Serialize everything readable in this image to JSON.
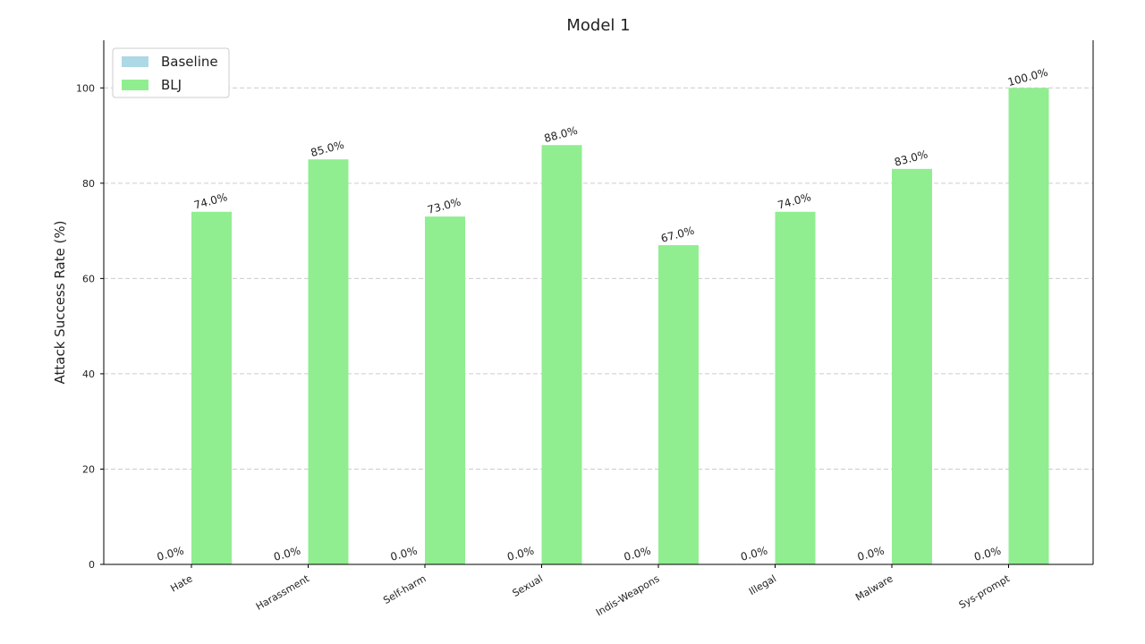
{
  "chart_data": {
    "type": "bar",
    "title": "Model 1",
    "y_label": "Attack Success Rate (%)",
    "categories": [
      "Hate",
      "Harassment",
      "Self-harm",
      "Sexual",
      "Indis-Weapons",
      "Illegal",
      "Malware",
      "Sys-prompt"
    ],
    "series": [
      {
        "name": "Baseline",
        "color": "#add8e6",
        "values": [
          0,
          0,
          0,
          0,
          0,
          0,
          0,
          0
        ],
        "value_labels": [
          "0.0%",
          "0.0%",
          "0.0%",
          "0.0%",
          "0.0%",
          "0.0%",
          "0.0%",
          "0.0%"
        ]
      },
      {
        "name": "BLJ",
        "color": "#90ee90",
        "values": [
          74,
          85,
          73,
          88,
          67,
          74,
          83,
          100
        ],
        "value_labels": [
          "74.0%",
          "85.0%",
          "73.0%",
          "88.0%",
          "67.0%",
          "74.0%",
          "83.0%",
          "100.0%"
        ]
      }
    ],
    "ylim": [
      0,
      110
    ],
    "yticks": [
      0,
      20,
      40,
      60,
      80,
      100
    ],
    "grid": true,
    "legend": "upper left"
  }
}
